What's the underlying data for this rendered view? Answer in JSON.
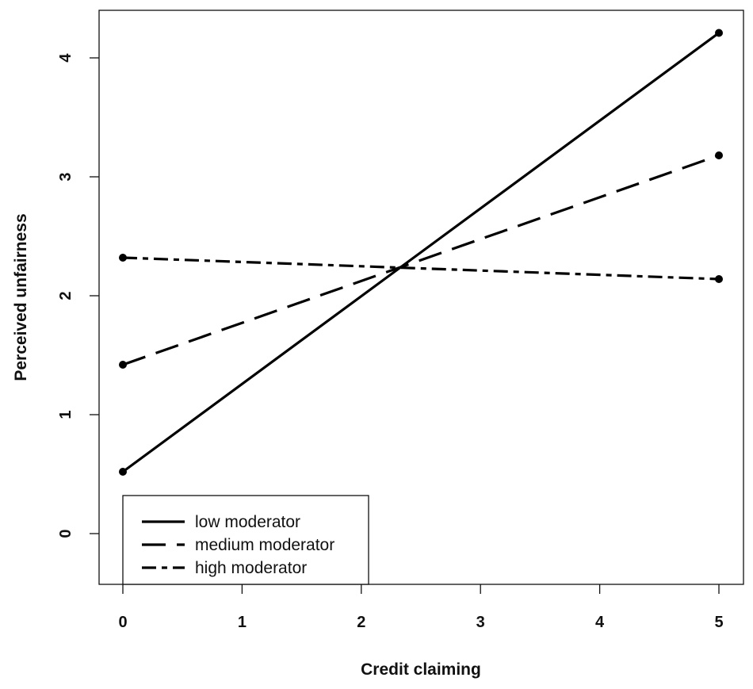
{
  "chart_data": {
    "type": "line",
    "title": "",
    "xlabel": "Credit claiming",
    "ylabel": "Perceived unfairness",
    "xlim": [
      0,
      5
    ],
    "ylim": [
      0,
      4
    ],
    "xticks": [
      0,
      1,
      2,
      3,
      4,
      5
    ],
    "yticks": [
      0,
      1,
      2,
      3,
      4
    ],
    "grid": false,
    "legend_position": "bottom-left",
    "x": [
      0,
      5
    ],
    "series": [
      {
        "name": "low moderator",
        "values": [
          0.52,
          4.21
        ],
        "linestyle": "solid"
      },
      {
        "name": "medium moderator",
        "values": [
          1.42,
          3.18
        ],
        "linestyle": "longdash"
      },
      {
        "name": "high moderator",
        "values": [
          2.32,
          2.14
        ],
        "linestyle": "dashdot"
      }
    ],
    "colors": {
      "line": "#000000",
      "axis": "#111111"
    }
  }
}
